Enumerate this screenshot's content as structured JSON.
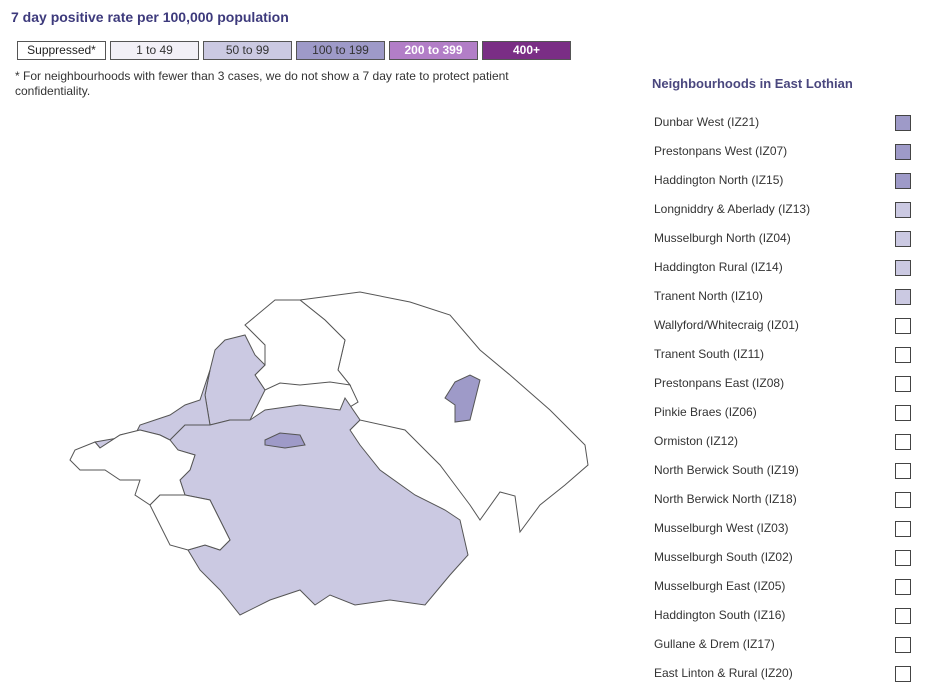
{
  "header": {
    "title": "7 day positive rate per 100,000 population"
  },
  "legend": {
    "items": [
      {
        "label": "Suppressed*",
        "color": "#ffffff",
        "text_color": "#222222"
      },
      {
        "label": "1 to 49",
        "color": "#f2f0f7",
        "text_color": "#333333"
      },
      {
        "label": "50 to 99",
        "color": "#cbc9e2",
        "text_color": "#333333"
      },
      {
        "label": "100 to 199",
        "color": "#9e9ac8",
        "text_color": "#333333"
      },
      {
        "label": "200 to 399",
        "color": "#b27ec7",
        "text_color": "#ffffff"
      },
      {
        "label": "400+",
        "color": "#7a2e85",
        "text_color": "#ffffff"
      }
    ]
  },
  "footnote": "* For neighbourhoods with fewer than 3 cases, we do not show a 7 day rate to protect patient confidentiality.",
  "sidebar": {
    "title": "Neighbourhoods in East Lothian",
    "items": [
      {
        "label": "Dunbar West (IZ21)",
        "color": "#9e9ac8"
      },
      {
        "label": "Prestonpans West (IZ07)",
        "color": "#9e9ac8"
      },
      {
        "label": "Haddington North (IZ15)",
        "color": "#9e9ac8"
      },
      {
        "label": "Longniddry & Aberlady (IZ13)",
        "color": "#cbc9e2"
      },
      {
        "label": "Musselburgh North (IZ04)",
        "color": "#cbc9e2"
      },
      {
        "label": "Haddington Rural (IZ14)",
        "color": "#cbc9e2"
      },
      {
        "label": "Tranent North (IZ10)",
        "color": "#cbc9e2"
      },
      {
        "label": "Wallyford/Whitecraig (IZ01)",
        "color": "#ffffff"
      },
      {
        "label": "Tranent South (IZ11)",
        "color": "#ffffff"
      },
      {
        "label": "Prestonpans East (IZ08)",
        "color": "#ffffff"
      },
      {
        "label": "Pinkie Braes (IZ06)",
        "color": "#ffffff"
      },
      {
        "label": "Ormiston (IZ12)",
        "color": "#ffffff"
      },
      {
        "label": "North Berwick South (IZ19)",
        "color": "#ffffff"
      },
      {
        "label": "North Berwick North (IZ18)",
        "color": "#ffffff"
      },
      {
        "label": "Musselburgh West (IZ03)",
        "color": "#ffffff"
      },
      {
        "label": "Musselburgh South (IZ02)",
        "color": "#ffffff"
      },
      {
        "label": "Musselburgh East (IZ05)",
        "color": "#ffffff"
      },
      {
        "label": "Haddington South (IZ16)",
        "color": "#ffffff"
      },
      {
        "label": "Gullane & Drem (IZ17)",
        "color": "#ffffff"
      },
      {
        "label": "East Linton & Rural (IZ20)",
        "color": "#ffffff"
      }
    ]
  }
}
